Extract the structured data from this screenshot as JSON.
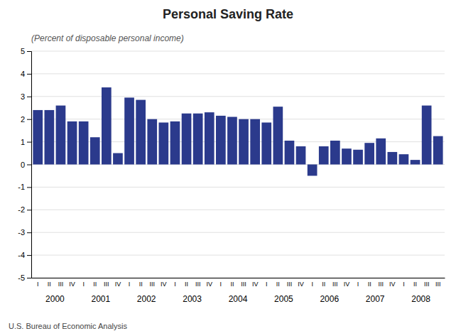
{
  "chart_data": {
    "type": "bar",
    "title": "Personal Saving Rate",
    "subtitle": "(Percent of disposable personal income)",
    "source": "U.S. Bureau of Economic Analysis",
    "categories": [
      "I",
      "II",
      "III",
      "IV",
      "I",
      "II",
      "III",
      "IV",
      "I",
      "II",
      "III",
      "IV",
      "I",
      "II",
      "III",
      "IV",
      "I",
      "II",
      "III",
      "IV",
      "I",
      "II",
      "III",
      "IV",
      "I",
      "II",
      "III",
      "IV",
      "I",
      "II",
      "III",
      "IV",
      "I",
      "II",
      "III",
      "III"
    ],
    "year_labels": [
      "2000",
      "2001",
      "2002",
      "2003",
      "2004",
      "2005",
      "2006",
      "2007",
      "2008"
    ],
    "values": [
      2.4,
      2.4,
      2.6,
      1.9,
      1.9,
      1.2,
      3.4,
      0.5,
      2.95,
      2.85,
      2.0,
      1.85,
      1.9,
      2.25,
      2.25,
      2.3,
      2.15,
      2.1,
      2.0,
      2.0,
      1.85,
      2.55,
      1.05,
      0.8,
      -0.5,
      0.8,
      1.05,
      0.7,
      0.65,
      0.95,
      1.15,
      0.55,
      0.45,
      0.2,
      2.6,
      1.25
    ],
    "color": "#2B3A8C",
    "ylim": [
      -5,
      5
    ],
    "yticks": [
      -5,
      -4,
      -3,
      -2,
      -1,
      0,
      1,
      2,
      3,
      4,
      5
    ],
    "grid": true
  }
}
